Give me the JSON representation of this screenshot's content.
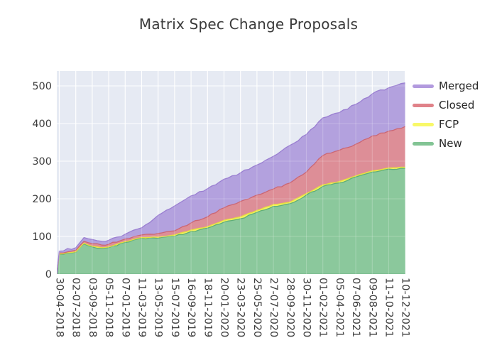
{
  "page": {
    "title": "Matrix Spec Change Proposals"
  },
  "chart_data": {
    "type": "area",
    "stacked": true,
    "title": "Matrix Spec Change Proposals",
    "categories": [
      "30-04-2018",
      "02-07-2018",
      "03-09-2018",
      "05-11-2018",
      "07-01-2019",
      "11-03-2019",
      "13-05-2019",
      "15-07-2019",
      "16-09-2019",
      "18-11-2019",
      "20-01-2020",
      "23-03-2020",
      "25-05-2020",
      "27-07-2020",
      "28-09-2020",
      "30-11-2020",
      "01-02-2021",
      "05-04-2021",
      "07-06-2021",
      "09-08-2021",
      "11-10-2021",
      "10-12-2021"
    ],
    "x_offsets": [
      -0.15,
      0,
      1,
      1.5,
      2,
      2.6,
      3,
      4,
      5,
      6,
      7,
      8,
      9,
      10,
      11,
      12,
      13,
      14,
      15,
      16,
      17,
      18,
      19,
      20,
      21
    ],
    "stack_order_bottom_to_top": [
      "New",
      "FCP",
      "Closed",
      "Merged"
    ],
    "series": [
      {
        "name": "New",
        "values": [
          0,
          52,
          58,
          80,
          72,
          68,
          70,
          84,
          95,
          95,
          100,
          113,
          122,
          138,
          147,
          164,
          180,
          187,
          210,
          233,
          242,
          258,
          271,
          279,
          281
        ]
      },
      {
        "name": "FCP",
        "values": [
          0,
          1,
          1,
          2,
          2,
          2,
          2,
          2,
          2,
          3,
          4,
          4,
          4,
          5,
          5,
          5,
          5,
          4,
          4,
          4,
          4,
          3,
          3,
          3,
          3
        ]
      },
      {
        "name": "Closed",
        "values": [
          0,
          3,
          4,
          5,
          7,
          7,
          7,
          7,
          7,
          10,
          11,
          19,
          26,
          33,
          41,
          41,
          41,
          51,
          57,
          78,
          83,
          84,
          93,
          98,
          108
        ]
      },
      {
        "name": "Merged",
        "values": [
          0,
          5,
          7,
          10,
          11,
          10,
          11,
          13,
          19,
          48,
          66,
          72,
          75,
          76,
          76,
          80,
          87,
          100,
          100,
          100,
          100,
          106,
          112,
          115,
          116
        ]
      }
    ],
    "yticks": [
      0,
      100,
      200,
      300,
      400,
      500
    ],
    "ylim": [
      0,
      540
    ],
    "grid": true,
    "legend_position": "right"
  },
  "legend": {
    "items": [
      {
        "label": "Merged",
        "color": "#b29ade"
      },
      {
        "label": "Closed",
        "color": "#e08289"
      },
      {
        "label": "FCP",
        "color": "#f8f868"
      },
      {
        "label": "New",
        "color": "#82c494"
      }
    ]
  },
  "colors": {
    "background": "#e6eaf3",
    "grid": "#ffffff",
    "fills": {
      "New": "#8bc89c",
      "FCP": "#f4f160",
      "Closed": "#dd8e97",
      "Merged": "#b3a1de"
    },
    "lines": {
      "New": "#5fae77",
      "FCP": "#e6df3e",
      "Closed": "#cb6673",
      "Merged": "#9a7fd1"
    },
    "title_text": "#3a3a3a",
    "tick_text": "#3d3d3d",
    "legend_text": "#262626"
  }
}
